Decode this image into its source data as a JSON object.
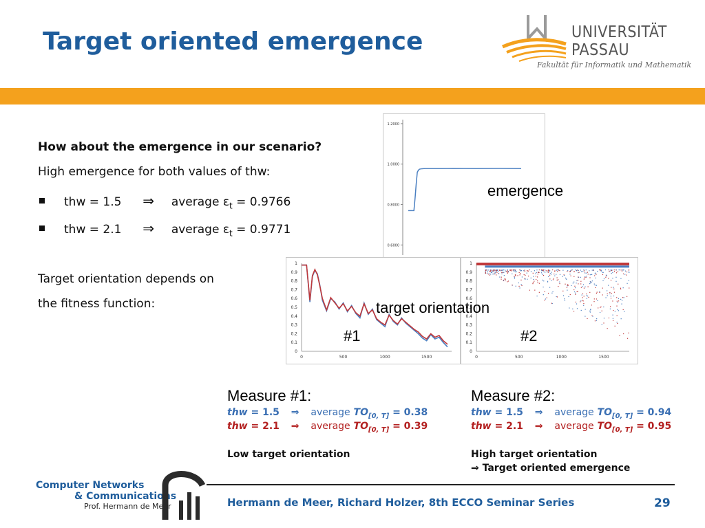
{
  "header": {
    "title": "Target oriented emergence",
    "university_name_line1": "UNIVERSITÄT",
    "university_name_line2": "PASSAU",
    "faculty": "Fakultät für Informatik und Mathematik"
  },
  "content": {
    "question": "How about the emergence in our scenario?",
    "statement": "High emergence for both values of thw:",
    "bullets": [
      {
        "thw": "thw = 1.5",
        "arrow": "⇒",
        "avg": "average",
        "symbol": "ε",
        "sub": "t",
        "value": "= 0.9766"
      },
      {
        "thw": "thw = 2.1",
        "arrow": "⇒",
        "avg": "average",
        "symbol": "ε",
        "sub": "t",
        "value": "= 0.9771"
      }
    ],
    "depends_line1": "Target orientation depends on",
    "depends_line2": "the fitness function:"
  },
  "labels": {
    "emergence": "emergence",
    "target_orientation": "target orientation",
    "chart1": "#1",
    "chart2": "#2"
  },
  "measures": [
    {
      "title": "Measure #1:",
      "lines": [
        {
          "thw_label": "thw",
          "thw_value": " = 1.5",
          "arrow": "⇒",
          "avg": "average",
          "to": "TO",
          "sub": "[0, T]",
          "result": " = 0.38",
          "color": "#3a6fb3"
        },
        {
          "thw_label": "thw",
          "thw_value": " = 2.1",
          "arrow": "⇒",
          "avg": "average",
          "to": "TO",
          "sub": "[0, T]",
          "result": " = 0.39",
          "color": "#b32020"
        }
      ],
      "note1": "Low target orientation",
      "note2": ""
    },
    {
      "title": "Measure #2:",
      "lines": [
        {
          "thw_label": "thw",
          "thw_value": " = 1.5",
          "arrow": "⇒",
          "avg": "average",
          "to": "TO",
          "sub": "[0, T]",
          "result": " = 0.94",
          "color": "#3a6fb3"
        },
        {
          "thw_label": "thw",
          "thw_value": " = 2.1",
          "arrow": "⇒",
          "avg": "average",
          "to": "TO",
          "sub": "[0, T]",
          "result": " = 0.95",
          "color": "#b32020"
        }
      ],
      "note1": "High target orientation",
      "note2": "⇒ Target oriented emergence"
    }
  ],
  "footer": {
    "group_line1": "Computer Networks",
    "group_line2": "& Communications",
    "group_line3": "Prof. Hermann de Meer",
    "authors": "Hermann de Meer, Richard Holzer, 8th ECCO Seminar Series",
    "page_number": "29"
  },
  "colors": {
    "title_blue": "#1f5d9c",
    "banner_orange": "#f4a11d",
    "series_blue": "#4a7fc1",
    "series_red": "#c0393b"
  },
  "chart_data": [
    {
      "type": "line",
      "name_ref": "emergence",
      "y_ticks": [
        "1.2000",
        "1.0000",
        "0.8000",
        "0.6000"
      ],
      "ylim": [
        0.55,
        1.22
      ],
      "x": [
        0,
        1,
        2,
        3,
        4,
        5,
        6,
        7,
        8,
        9,
        10,
        12,
        15,
        20,
        30,
        40,
        60,
        80,
        100
      ],
      "series": [
        {
          "values": [
            0.77,
            0.77,
            0.77,
            0.77,
            0.77,
            0.77,
            0.83,
            0.9,
            0.96,
            0.97,
            0.975,
            0.977,
            0.978,
            0.978,
            0.978,
            0.979,
            0.978,
            0.979,
            0.978
          ]
        }
      ]
    },
    {
      "type": "line",
      "name_ref": "chart1",
      "y_ticks": [
        "1",
        "0.9",
        "0.8",
        "0.7",
        "0.6",
        "0.5",
        "0.4",
        "0.3",
        "0.2",
        "0.1",
        "0"
      ],
      "x_ticks": [
        "0",
        "500",
        "1000",
        "1500"
      ],
      "xlim": [
        0,
        1800
      ],
      "ylim": [
        0,
        1
      ],
      "x": [
        0,
        60,
        100,
        130,
        160,
        190,
        220,
        250,
        300,
        350,
        400,
        450,
        500,
        550,
        600,
        650,
        700,
        750,
        800,
        850,
        900,
        950,
        1000,
        1050,
        1100,
        1150,
        1200,
        1250,
        1300,
        1350,
        1400,
        1450,
        1500,
        1550,
        1600,
        1650,
        1700,
        1750
      ],
      "series": [
        {
          "values": [
            0.98,
            0.98,
            0.56,
            0.85,
            0.92,
            0.88,
            0.75,
            0.58,
            0.46,
            0.6,
            0.56,
            0.48,
            0.55,
            0.45,
            0.52,
            0.43,
            0.38,
            0.55,
            0.42,
            0.48,
            0.36,
            0.32,
            0.28,
            0.42,
            0.34,
            0.3,
            0.38,
            0.32,
            0.28,
            0.24,
            0.2,
            0.15,
            0.12,
            0.19,
            0.14,
            0.16,
            0.1,
            0.05
          ]
        },
        {
          "values": [
            0.98,
            0.98,
            0.58,
            0.86,
            0.93,
            0.87,
            0.74,
            0.6,
            0.47,
            0.61,
            0.55,
            0.49,
            0.54,
            0.46,
            0.51,
            0.44,
            0.4,
            0.54,
            0.43,
            0.47,
            0.37,
            0.33,
            0.3,
            0.41,
            0.35,
            0.31,
            0.37,
            0.33,
            0.29,
            0.25,
            0.22,
            0.17,
            0.14,
            0.2,
            0.16,
            0.18,
            0.12,
            0.08
          ]
        }
      ]
    },
    {
      "type": "scatter",
      "name_ref": "chart2",
      "y_ticks": [
        "1",
        "0.9",
        "0.8",
        "0.7",
        "0.6",
        "0.5",
        "0.4",
        "0.3",
        "0.2",
        "0.1",
        "0"
      ],
      "x_ticks": [
        "0",
        "500",
        "1000",
        "1500"
      ],
      "xlim": [
        0,
        1800
      ],
      "ylim": [
        0,
        1
      ]
    }
  ]
}
